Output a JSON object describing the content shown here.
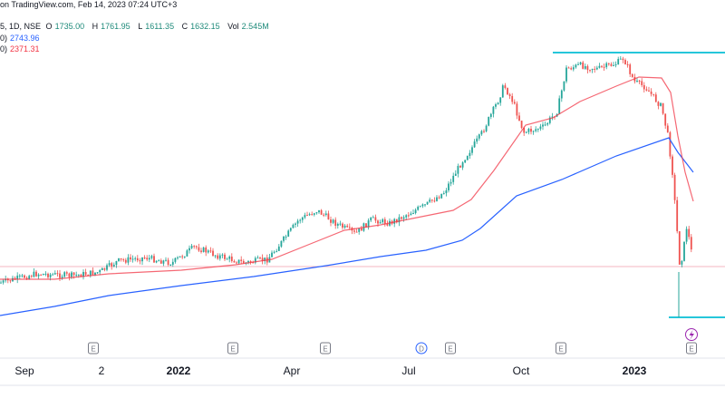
{
  "header": {
    "line1": {
      "prefix": "on TradingView.com, Feb 14, 2023 07:24 UTC+3",
      "left_fragment": "5, 1D, NSE",
      "open_label": "O",
      "open": "1735.00",
      "high_label": "H",
      "high": "1761.95",
      "low_label": "L",
      "low": "1611.35",
      "close_label": "C",
      "close": "1632.15",
      "vol_label": "Vol",
      "vol": "2.545M"
    },
    "ma1": {
      "prefix": "0)",
      "value": "2743.96",
      "color": "#2962ff"
    },
    "ma2": {
      "prefix": "0)",
      "value": "2371.31",
      "color": "#f23645"
    }
  },
  "chart_data": {
    "type": "line",
    "x_tick_labels": [
      "Sep",
      "2",
      "2022",
      "Apr",
      "Jul",
      "Oct",
      "2023"
    ],
    "bold_ticks": [
      "2022",
      "2023"
    ],
    "events": [
      {
        "label": "E",
        "color": "#787b86"
      },
      {
        "label": "E",
        "color": "#787b86"
      },
      {
        "label": "E",
        "color": "#787b86"
      },
      {
        "label": "D",
        "color": "#2962ff"
      },
      {
        "label": "E",
        "color": "#787b86"
      },
      {
        "label": "E",
        "color": "#787b86"
      },
      {
        "label": "E",
        "color": "#c86bd4"
      }
    ],
    "lightning_icon": "lightning-icon",
    "colors": {
      "up": "#26a69a",
      "down": "#ef5350",
      "ma_long": "#2962ff",
      "ma_short": "#f23645",
      "level": "#26c6da"
    }
  }
}
